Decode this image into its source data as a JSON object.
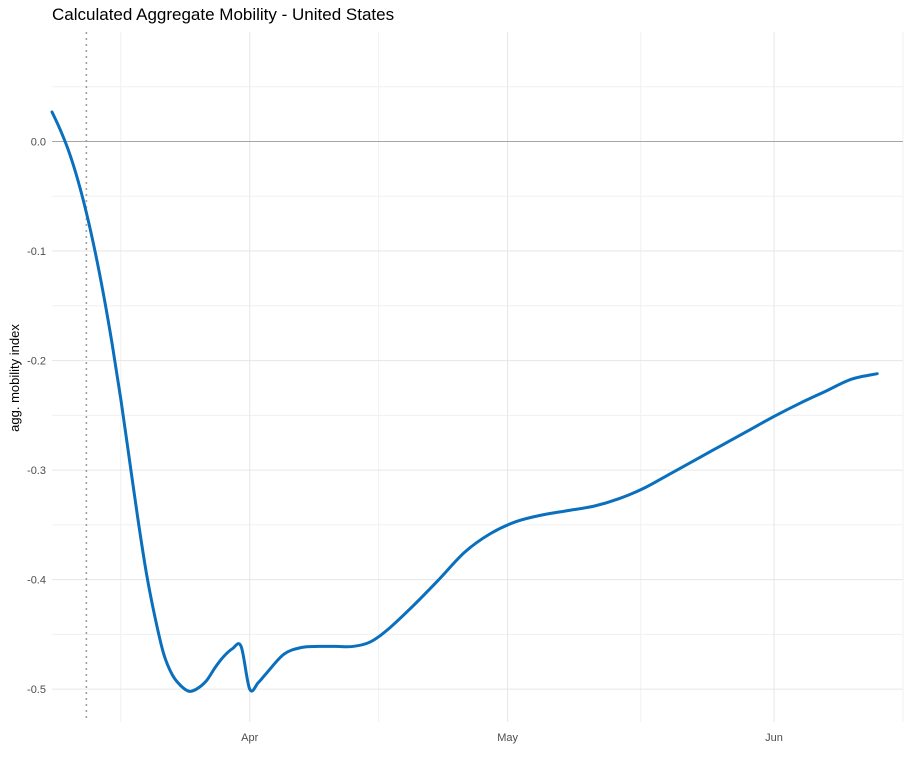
{
  "chart_data": {
    "type": "line",
    "title": "Calculated Aggregate Mobility - United States",
    "xlabel": "",
    "ylabel": "agg. mobility index",
    "x_ticks": [
      "2020-04-01",
      "2020-05-01",
      "2020-06-01"
    ],
    "x_tick_labels": [
      "Apr",
      "May",
      "Jun"
    ],
    "y_ticks": [
      0.0,
      -0.1,
      -0.2,
      -0.3,
      -0.4,
      -0.5
    ],
    "y_tick_labels": [
      "0.0",
      "-0.1",
      "-0.2",
      "-0.3",
      "-0.4",
      "-0.5"
    ],
    "xlim": [
      "2020-03-09",
      "2020-06-16"
    ],
    "ylim": [
      -0.53,
      0.1
    ],
    "grid": true,
    "reference_line_y": 0.0,
    "vertical_marker_x": "2020-03-13",
    "series": [
      {
        "color": "#0a6fbd",
        "points": [
          [
            "2020-03-09",
            0.027
          ],
          [
            "2020-03-10",
            0.01
          ],
          [
            "2020-03-11",
            -0.01
          ],
          [
            "2020-03-12",
            -0.035
          ],
          [
            "2020-03-13",
            -0.065
          ],
          [
            "2020-03-14",
            -0.1
          ],
          [
            "2020-03-15",
            -0.14
          ],
          [
            "2020-03-16",
            -0.185
          ],
          [
            "2020-03-17",
            -0.235
          ],
          [
            "2020-03-18",
            -0.29
          ],
          [
            "2020-03-19",
            -0.345
          ],
          [
            "2020-03-20",
            -0.395
          ],
          [
            "2020-03-21",
            -0.435
          ],
          [
            "2020-03-22",
            -0.468
          ],
          [
            "2020-03-23",
            -0.487
          ],
          [
            "2020-03-24",
            -0.497
          ],
          [
            "2020-03-25",
            -0.502
          ],
          [
            "2020-03-26",
            -0.499
          ],
          [
            "2020-03-27",
            -0.492
          ],
          [
            "2020-03-28",
            -0.48
          ],
          [
            "2020-03-29",
            -0.47
          ],
          [
            "2020-03-30",
            -0.463
          ],
          [
            "2020-03-31",
            -0.461
          ],
          [
            "2020-04-01",
            -0.5
          ],
          [
            "2020-04-02",
            -0.494
          ],
          [
            "2020-04-03",
            -0.485
          ],
          [
            "2020-04-05",
            -0.468
          ],
          [
            "2020-04-07",
            -0.462
          ],
          [
            "2020-04-09",
            -0.461
          ],
          [
            "2020-04-11",
            -0.461
          ],
          [
            "2020-04-13",
            -0.461
          ],
          [
            "2020-04-15",
            -0.457
          ],
          [
            "2020-04-17",
            -0.446
          ],
          [
            "2020-04-20",
            -0.424
          ],
          [
            "2020-04-23",
            -0.4
          ],
          [
            "2020-04-26",
            -0.375
          ],
          [
            "2020-04-29",
            -0.358
          ],
          [
            "2020-05-02",
            -0.347
          ],
          [
            "2020-05-05",
            -0.341
          ],
          [
            "2020-05-08",
            -0.337
          ],
          [
            "2020-05-11",
            -0.333
          ],
          [
            "2020-05-14",
            -0.326
          ],
          [
            "2020-05-17",
            -0.316
          ],
          [
            "2020-05-20",
            -0.303
          ],
          [
            "2020-05-23",
            -0.29
          ],
          [
            "2020-05-26",
            -0.277
          ],
          [
            "2020-05-29",
            -0.264
          ],
          [
            "2020-06-01",
            -0.251
          ],
          [
            "2020-06-04",
            -0.239
          ],
          [
            "2020-06-07",
            -0.228
          ],
          [
            "2020-06-10",
            -0.217
          ],
          [
            "2020-06-13",
            -0.212
          ]
        ]
      }
    ]
  }
}
